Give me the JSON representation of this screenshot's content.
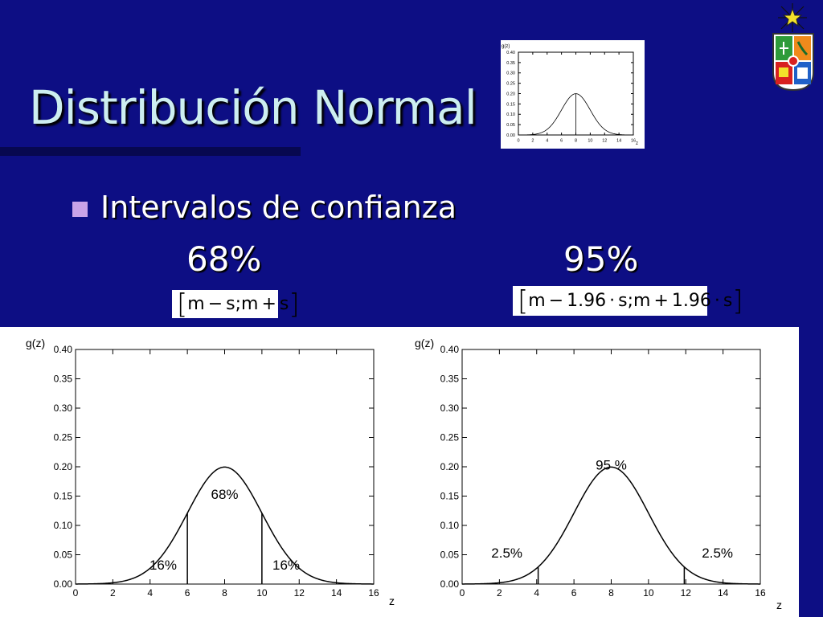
{
  "slide": {
    "title": "Distribución Normal",
    "bullet": "Intervalos de confianza",
    "left_pct": "68%",
    "right_pct": "95%",
    "formula_left": {
      "m": "m",
      "minus": "−",
      "s1": "s",
      "sep": ";",
      "m2": "m",
      "plus": "+",
      "s2": "s"
    },
    "formula_right": {
      "m": "m",
      "minus": "−",
      "k1": "1.96",
      "dot": "·",
      "s1": "s",
      "sep": ";",
      "m2": "m",
      "plus": "+",
      "k2": "1.96",
      "s2": "s"
    },
    "colors": {
      "background": "#0d0e84",
      "title": "#cdeef0",
      "bullet": "#c9a3e8"
    },
    "icons": [
      "star-icon",
      "university-crest-icon"
    ]
  },
  "chart_data": [
    {
      "type": "line",
      "name": "thumbnail",
      "ylabel": "g(z)",
      "xlabel": "z",
      "mean": 8,
      "sd": 2,
      "xlim": [
        0,
        16
      ],
      "ylim": [
        0,
        0.4
      ],
      "xticks": [
        "0",
        "2",
        "4",
        "6",
        "8",
        "10",
        "12",
        "14",
        "16"
      ],
      "yticks": [
        "0.00",
        "0.05",
        "0.10",
        "0.15",
        "0.20",
        "0.25",
        "0.30",
        "0.35",
        "0.40"
      ],
      "vlines": [
        8
      ]
    },
    {
      "type": "line",
      "name": "68",
      "ylabel": "g(z)",
      "xlabel": "z",
      "mean": 8,
      "sd": 2,
      "xlim": [
        0,
        16
      ],
      "ylim": [
        0,
        0.4
      ],
      "xticks": [
        "0",
        "2",
        "4",
        "6",
        "8",
        "10",
        "12",
        "14",
        "16"
      ],
      "yticks": [
        "0.00",
        "0.05",
        "0.10",
        "0.15",
        "0.20",
        "0.25",
        "0.30",
        "0.35",
        "0.40"
      ],
      "vlines": [
        6,
        10
      ],
      "annotations": [
        {
          "text": "68%",
          "x": 8,
          "y": 0.145
        },
        {
          "text": "16%",
          "x": 4.7,
          "y": 0.025
        },
        {
          "text": "16%",
          "x": 11.3,
          "y": 0.025
        }
      ]
    },
    {
      "type": "line",
      "name": "95",
      "ylabel": "g(z)",
      "xlabel": "z",
      "mean": 8,
      "sd": 2,
      "xlim": [
        0,
        16
      ],
      "ylim": [
        0,
        0.4
      ],
      "xticks": [
        "0",
        "2",
        "4",
        "6",
        "8",
        "10",
        "12",
        "14",
        "16"
      ],
      "yticks": [
        "0.00",
        "0.05",
        "0.10",
        "0.15",
        "0.20",
        "0.25",
        "0.30",
        "0.35",
        "0.40"
      ],
      "vlines": [
        4.08,
        11.92
      ],
      "annotations": [
        {
          "text": "95 %",
          "x": 8,
          "y": 0.195
        },
        {
          "text": "2.5%",
          "x": 2.4,
          "y": 0.045
        },
        {
          "text": "2.5%",
          "x": 13.7,
          "y": 0.045
        }
      ]
    }
  ]
}
